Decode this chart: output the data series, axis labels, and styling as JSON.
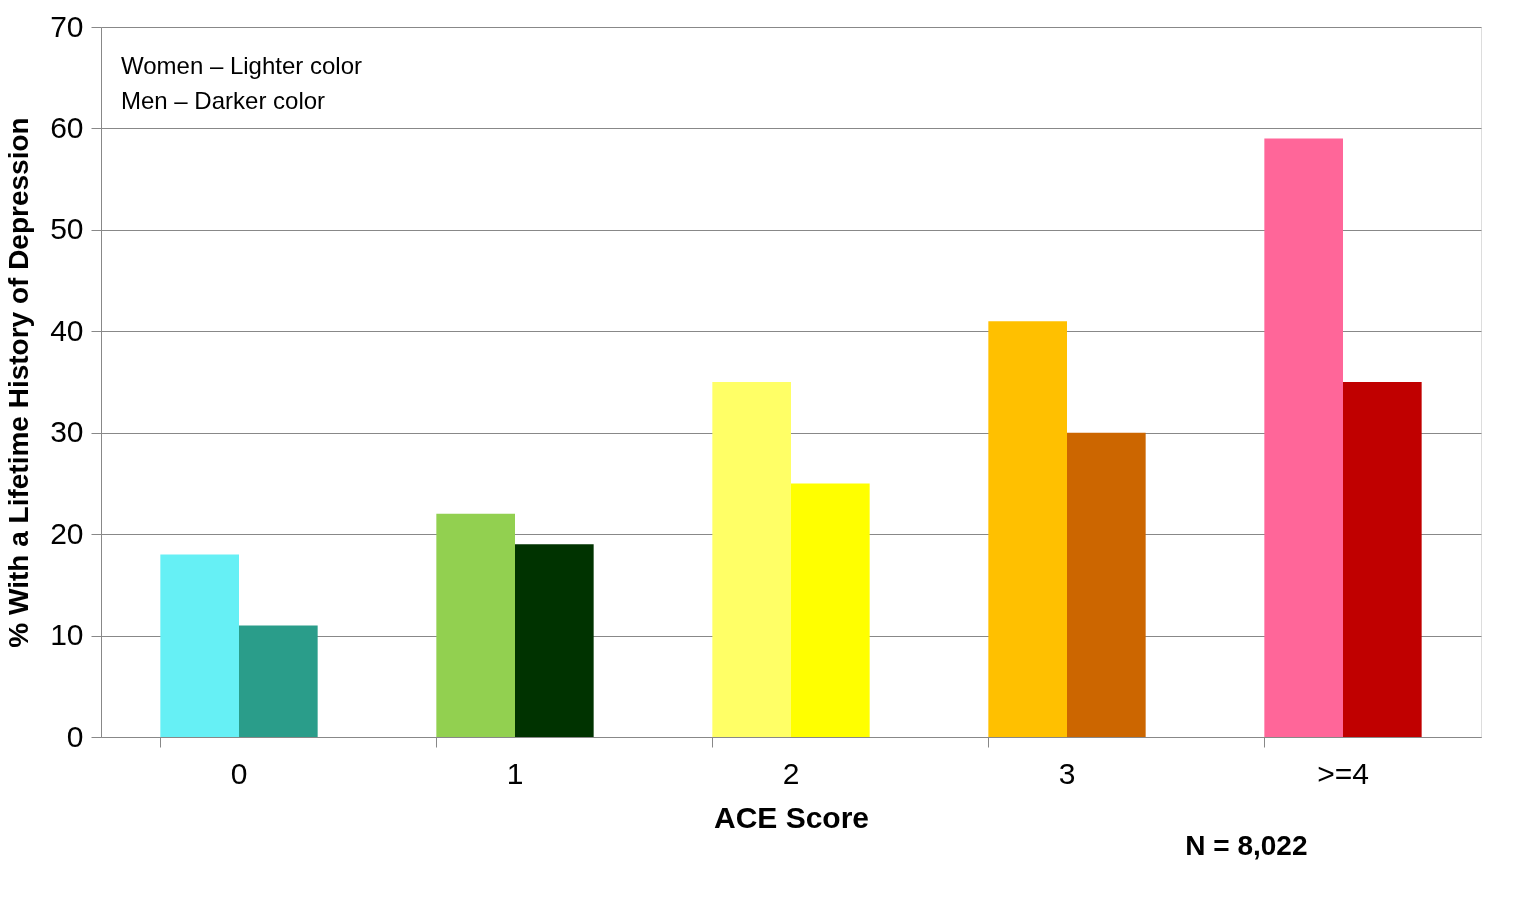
{
  "chart_data": {
    "type": "bar",
    "categories": [
      "0",
      "1",
      "2",
      "3",
      ">=4"
    ],
    "series": [
      {
        "colors": [
          "#66f0f5",
          "#92d050",
          "#ffff66",
          "#ffc000",
          "#ff6699"
        ],
        "values": [
          18,
          22,
          35,
          41,
          59
        ]
      },
      {
        "colors": [
          "#2a9d8a",
          "#003300",
          "#ffff00",
          "#cc6600",
          "#c00000"
        ],
        "values": [
          11,
          19,
          25,
          30,
          35
        ]
      }
    ],
    "xlabel": "ACE Score",
    "ylabel": "% With a Lifetime History of Depression",
    "ylim": [
      0,
      70
    ],
    "yticks": [
      0,
      10,
      20,
      30,
      40,
      50,
      60,
      70
    ],
    "grid": "y",
    "legend": false,
    "annotations": [
      "Women – Lighter color",
      "Men – Darker color",
      "N = 8,022"
    ]
  }
}
